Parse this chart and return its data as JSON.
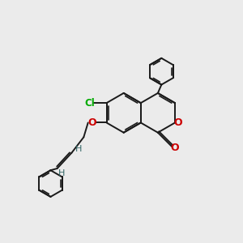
{
  "background_color": "#ebebeb",
  "bond_color": "#1a1a1a",
  "oxygen_color": "#cc0000",
  "chlorine_color": "#00aa00",
  "hydrogen_color": "#336666",
  "figsize": [
    3.0,
    3.0
  ],
  "dpi": 100,
  "xlim": [
    0,
    10
  ],
  "ylim": [
    0,
    10
  ]
}
